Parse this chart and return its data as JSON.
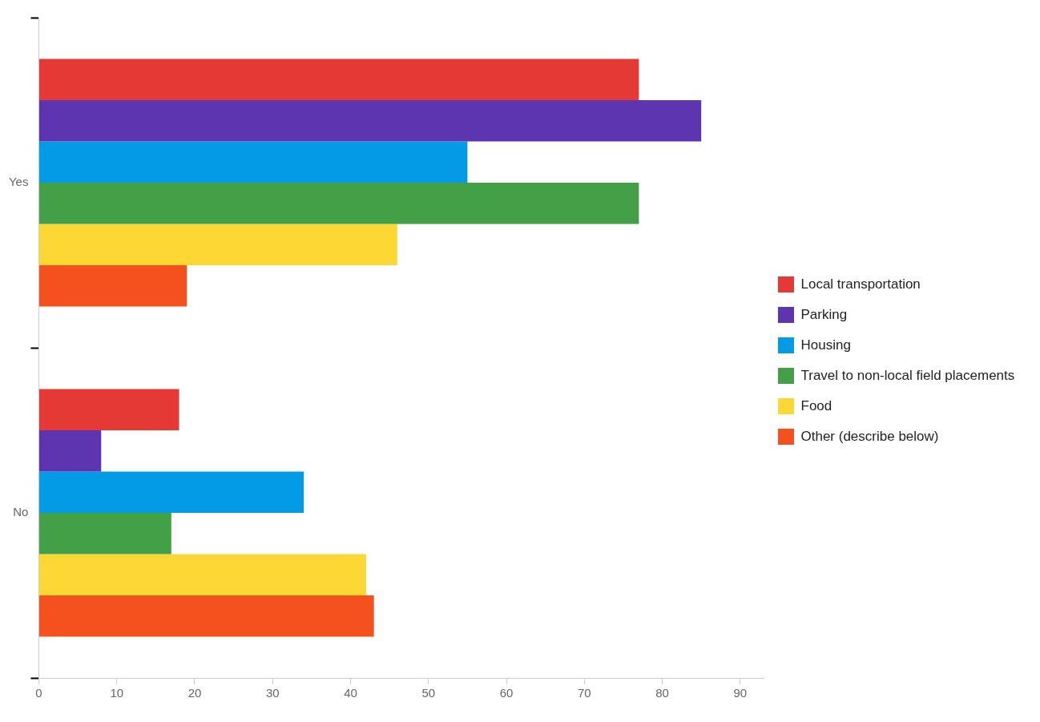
{
  "chart_data": {
    "type": "bar",
    "orientation": "horizontal",
    "categories": [
      "Yes",
      "No"
    ],
    "series": [
      {
        "name": "Local transportation",
        "color": "#e53935",
        "values": [
          77,
          18
        ]
      },
      {
        "name": "Parking",
        "color": "#5e35b1",
        "values": [
          85,
          8
        ]
      },
      {
        "name": "Housing",
        "color": "#039be5",
        "values": [
          55,
          34
        ]
      },
      {
        "name": "Travel to non-local field placements",
        "color": "#43a047",
        "values": [
          77,
          17
        ]
      },
      {
        "name": "Food",
        "color": "#fdd835",
        "values": [
          46,
          42
        ]
      },
      {
        "name": "Other (describe below)",
        "color": "#f4511e",
        "values": [
          19,
          43
        ]
      }
    ],
    "xlim": [
      0,
      93
    ],
    "xticks": [
      0,
      10,
      20,
      30,
      40,
      50,
      60,
      70,
      80,
      90
    ],
    "grid": false,
    "legend": "right"
  }
}
